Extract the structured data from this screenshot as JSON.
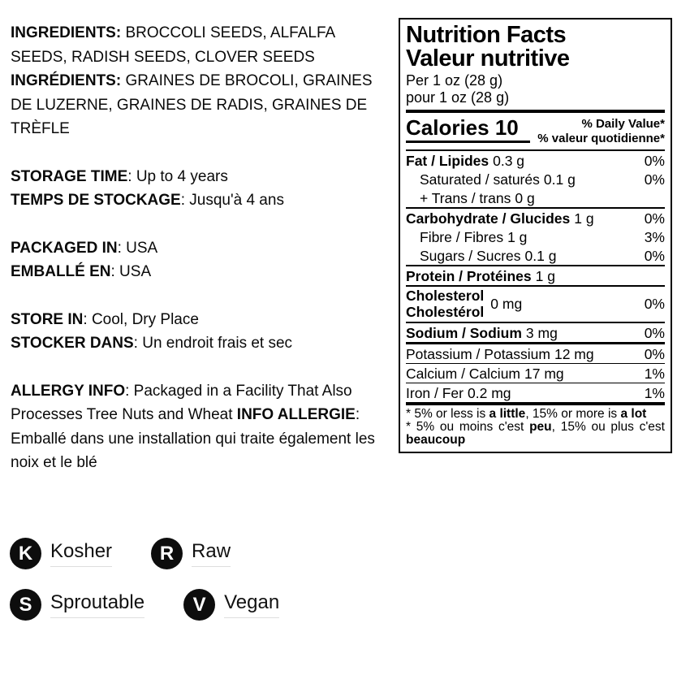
{
  "left": {
    "ingredients": {
      "label_en": "INGREDIENTS:",
      "text_en": " BROCCOLI SEEDS, ALFALFA SEEDS, RADISH SEEDS, CLOVER SEEDS",
      "label_fr": "INGRÉDIENTS:",
      "text_fr": " GRAINES DE BROCOLI, GRAINES DE LUZERNE, GRAINES DE RADIS, GRAINES DE TRÈFLE"
    },
    "storage": {
      "label_en": "STORAGE TIME",
      "text_en": ": Up to 4 years",
      "label_fr": "TEMPS DE STOCKAGE",
      "text_fr": ": Jusqu'à 4 ans"
    },
    "packaged": {
      "label_en": "PACKAGED IN",
      "text_en": ": USA",
      "label_fr": "EMBALLÉ EN",
      "text_fr": ": USA"
    },
    "store": {
      "label_en": "STORE IN",
      "text_en": ": Cool, Dry Place",
      "label_fr": "STOCKER DANS",
      "text_fr": ": Un endroit frais et sec"
    },
    "allergy": {
      "label_en": "ALLERGY INFO",
      "text_en": ": Packaged in a Facility That Also Processes Tree Nuts and Wheat",
      "label_fr": "INFO ALLERGIE",
      "text_fr": ": Emballé dans une installation qui traite également les noix et le blé"
    }
  },
  "badges": [
    {
      "letter": "K",
      "label": "Kosher"
    },
    {
      "letter": "R",
      "label": "Raw"
    },
    {
      "letter": "S",
      "label": "Sproutable"
    },
    {
      "letter": "V",
      "label": "Vegan"
    }
  ],
  "nutrition": {
    "title_en": "Nutrition Facts",
    "title_fr": "Valeur nutritive",
    "serving_en": "Per 1 oz (28 g)",
    "serving_fr": "pour 1 oz (28 g)",
    "calories_line": "Calories 10",
    "dv_header_en": "% Daily Value*",
    "dv_header_fr": "% valeur quotidienne*",
    "rows": [
      {
        "name": "Fat / Lipides",
        "amount": "0.3 g",
        "dv": "0%"
      },
      {
        "name": "Saturated / saturés",
        "amount": "0.1 g",
        "dv": "0%"
      },
      {
        "name": "+ Trans / trans",
        "amount": "0 g",
        "dv": ""
      },
      {
        "name": "Carbohydrate / Glucides",
        "amount": "1 g",
        "dv": "0%"
      },
      {
        "name": "Fibre / Fibres",
        "amount": "1 g",
        "dv": "3%"
      },
      {
        "name": "Sugars / Sucres",
        "amount": "0.1 g",
        "dv": "0%"
      },
      {
        "name": "Protein / Protéines",
        "amount": "1 g",
        "dv": ""
      },
      {
        "name_line1": "Cholesterol",
        "name_line2": "Cholestérol",
        "amount": "0 mg",
        "dv": "0%"
      },
      {
        "name": "Sodium / Sodium",
        "amount": "3 mg",
        "dv": "0%"
      },
      {
        "name": "Potassium / Potassium",
        "amount": "12 mg",
        "dv": "0%"
      },
      {
        "name": "Calcium / Calcium",
        "amount": "17 mg",
        "dv": "1%"
      },
      {
        "name": "Iron / Fer",
        "amount": "0.2 mg",
        "dv": "1%"
      }
    ],
    "footnote_en": [
      {
        "t": "* 5% or less is "
      },
      {
        "t": "a little",
        "b": true
      },
      {
        "t": ", 15% or more is "
      },
      {
        "t": "a lot",
        "b": true
      }
    ],
    "footnote_fr": [
      {
        "t": "* 5% ou moins c'est "
      },
      {
        "t": "peu",
        "b": true
      },
      {
        "t": ", 15% ou plus c'est "
      },
      {
        "t": "beaucoup",
        "b": true
      }
    ]
  }
}
